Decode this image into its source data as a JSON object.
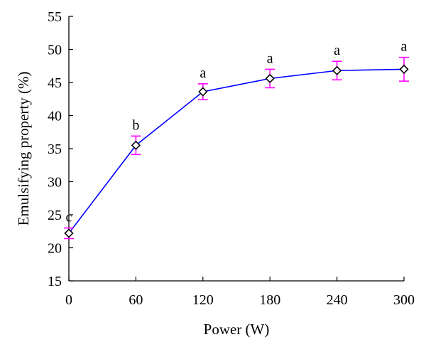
{
  "chart_data": {
    "type": "line",
    "title": "",
    "xlabel": "Power (W)",
    "ylabel": "Emulsifying property (%)",
    "x": [
      0,
      60,
      120,
      180,
      240,
      300
    ],
    "x_ticks": [
      "0",
      "60",
      "120",
      "180",
      "240",
      "300"
    ],
    "xlim": [
      0,
      300
    ],
    "ylim": [
      15,
      55
    ],
    "y_ticks": [
      "15",
      "20",
      "25",
      "30",
      "35",
      "40",
      "45",
      "50",
      "55"
    ],
    "grid": false,
    "series": [
      {
        "values": [
          22.2,
          35.5,
          43.6,
          45.6,
          46.8,
          47.0
        ],
        "errors": [
          0.8,
          1.4,
          1.2,
          1.4,
          1.4,
          1.8
        ],
        "letters": [
          "c",
          "b",
          "a",
          "a",
          "a",
          "a"
        ],
        "marker": "diamond"
      }
    ],
    "colors": {
      "line": "#0000ff",
      "error_bar": "#ff00ff",
      "marker": "#000000",
      "axis": "#000000"
    }
  }
}
